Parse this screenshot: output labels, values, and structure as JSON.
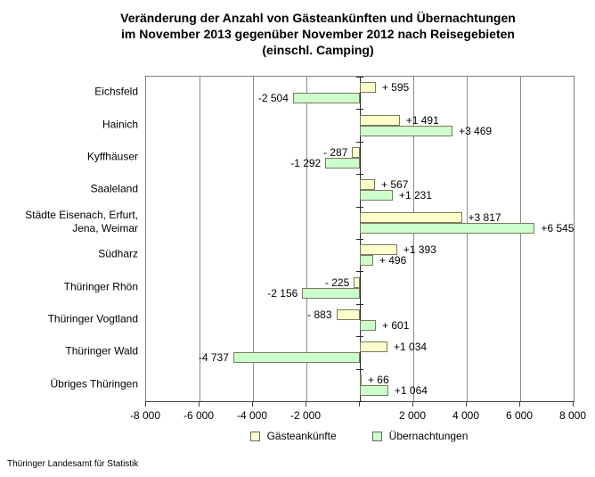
{
  "title": {
    "line1": "Veränderung der Anzahl von Gästeankünften und Übernachtungen",
    "line2": "im November 2013 gegenüber November 2012 nach Reisegebieten",
    "line3": "(einschl. Camping)"
  },
  "footer": "Thüringer Landesamt für Statistik",
  "chart_data": {
    "type": "bar",
    "orientation": "horizontal",
    "title": "Veränderung der Anzahl von Gästeankünften und Übernachtungen im November 2013 gegenüber November 2012 nach Reisegebieten (einschl. Camping)",
    "categories": [
      "Eichsfeld",
      "Hainich",
      "Kyffhäuser",
      "Saaleland",
      "Städte Eisenach, Erfurt,\nJena, Weimar",
      "Südharz",
      "Thüringer Rhön",
      "Thüringer Vogtland",
      "Thüringer Wald",
      "Übriges Thüringen"
    ],
    "series": [
      {
        "name": "Gästeankünfte",
        "color": "#FFFFCC",
        "values": [
          595,
          1491,
          -287,
          567,
          3817,
          1393,
          -225,
          -883,
          1034,
          66
        ],
        "labels": [
          "+ 595",
          "+1 491",
          "- 287",
          "+ 567",
          "+3 817",
          "+1 393",
          "- 225",
          "- 883",
          "+1 034",
          "+ 66"
        ]
      },
      {
        "name": "Übernachtungen",
        "color": "#CCFFCC",
        "values": [
          -2504,
          3469,
          -1292,
          1231,
          6545,
          496,
          -2156,
          601,
          -4737,
          1064
        ],
        "labels": [
          "-2 504",
          "+3 469",
          "-1 292",
          "+1 231",
          "+6 545",
          "+ 496",
          "-2 156",
          "+ 601",
          "-4 737",
          "+1 064"
        ]
      }
    ],
    "xlim": [
      -8000,
      8000
    ],
    "x_tick_values": [
      -8000,
      -6000,
      -4000,
      -2000,
      0,
      2000,
      4000,
      6000,
      8000
    ],
    "x_tick_labels": [
      "-8 000",
      "-6 000",
      "-4 000",
      "-2 000",
      "",
      "2 000",
      "4 000",
      "6 000",
      "8 000"
    ],
    "grid": true,
    "legend_position": "bottom",
    "zero_axis_color": "#262626",
    "gridline_color": "#8c8c8c"
  }
}
